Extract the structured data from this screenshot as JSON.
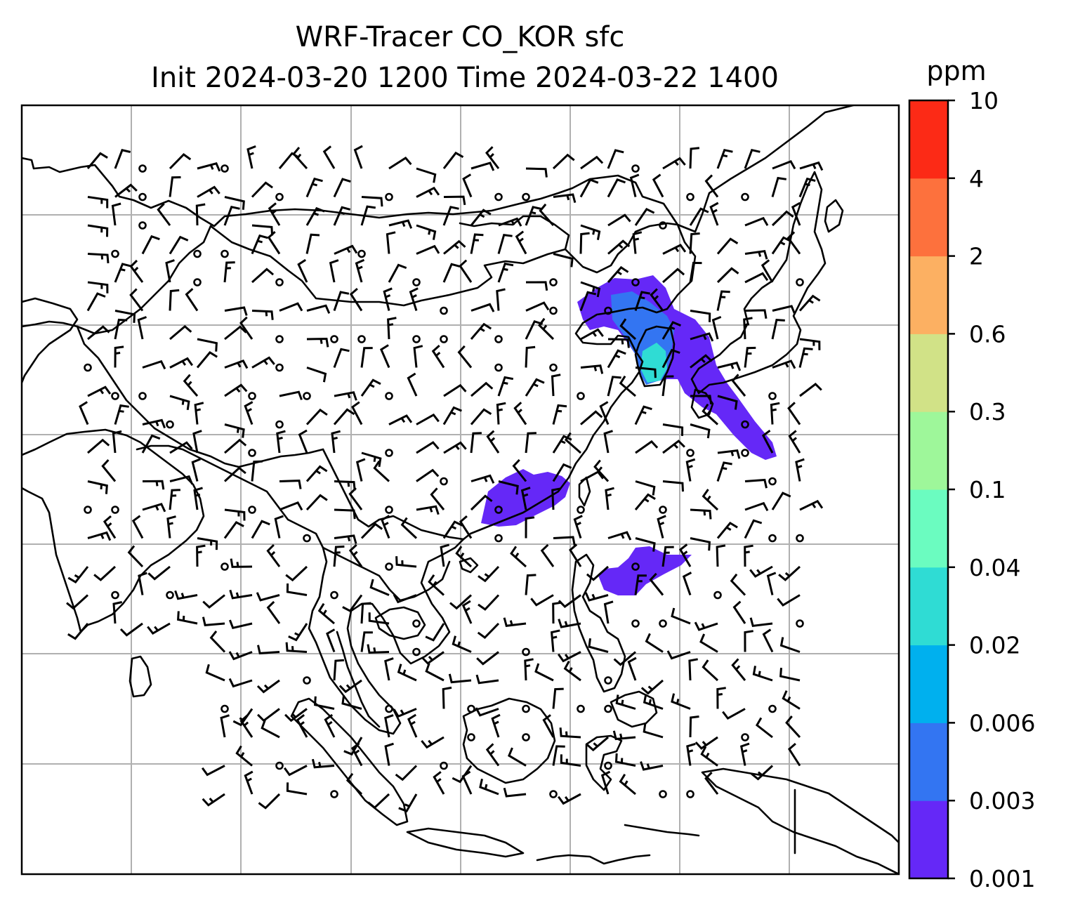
{
  "title": {
    "line1": "WRF-Tracer CO_KOR sfc",
    "line2": "Init 2024-03-20 1200 Time 2024-03-22 1400"
  },
  "colorbar": {
    "unit": "ppm",
    "ticks": [
      "0.001",
      "0.003",
      "0.006",
      "0.02",
      "0.04",
      "0.1",
      "0.3",
      "0.6",
      "2",
      "4",
      "10"
    ],
    "colors": [
      "#6528f7",
      "#3375f2",
      "#00b0ee",
      "#2fdcd4",
      "#6bfcc0",
      "#9ef79a",
      "#d1e287",
      "#fcb062",
      "#fd713d",
      "#fc2a16"
    ]
  },
  "map": {
    "projection": "lambert-conformal",
    "gridlines": true,
    "features": [
      "coastlines",
      "country-borders",
      "wind-barbs",
      "tracer-concentration"
    ]
  }
}
